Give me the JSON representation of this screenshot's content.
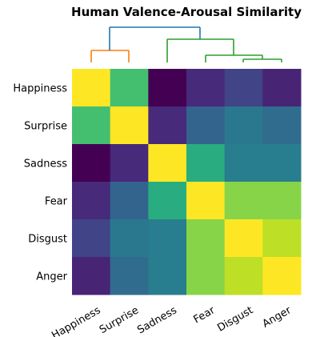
{
  "chart_data": {
    "type": "heatmap",
    "title": "Human Valence-Arousal Similarity",
    "categories": [
      "Happiness",
      "Surprise",
      "Sadness",
      "Fear",
      "Disgust",
      "Anger"
    ],
    "values": [
      [
        1,
        0.7,
        0,
        0.12,
        0.2,
        0.1
      ],
      [
        0.7,
        1,
        0.12,
        0.32,
        0.4,
        0.35
      ],
      [
        0,
        0.12,
        1,
        0.62,
        0.42,
        0.42
      ],
      [
        0.12,
        0.32,
        0.62,
        1,
        0.82,
        0.82
      ],
      [
        0.2,
        0.4,
        0.42,
        0.82,
        1,
        0.9
      ],
      [
        0.1,
        0.35,
        0.42,
        0.82,
        0.9,
        1
      ]
    ],
    "colormap": "viridis"
  }
}
